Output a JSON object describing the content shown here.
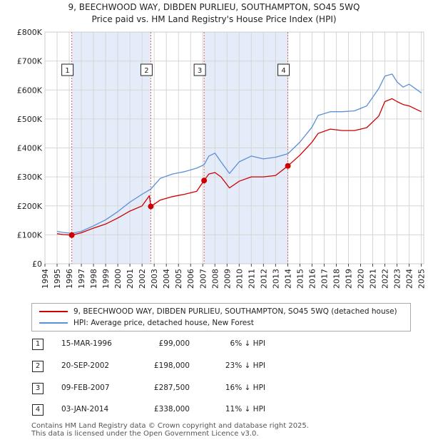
{
  "title_line1": "9, BEECHWOOD WAY, DIBDEN PURLIEU, SOUTHAMPTON, SO45 5WQ",
  "title_line2": "Price paid vs. HM Land Registry's House Price Index (HPI)",
  "chart_data": {
    "type": "line",
    "title": "9, BEECHWOOD WAY, DIBDEN PURLIEU, SOUTHAMPTON, SO45 5WQ — Price paid vs. HM Land Registry's House Price Index (HPI)",
    "xlabel": "",
    "ylabel": "",
    "xlim": [
      1994,
      2025.2
    ],
    "ylim": [
      0,
      800000
    ],
    "y_ticks": [
      0,
      100000,
      200000,
      300000,
      400000,
      500000,
      600000,
      700000,
      800000
    ],
    "y_tick_labels": [
      "£0",
      "£100K",
      "£200K",
      "£300K",
      "£400K",
      "£500K",
      "£600K",
      "£700K",
      "£800K"
    ],
    "x_ticks": [
      1994,
      1995,
      1996,
      1997,
      1998,
      1999,
      2000,
      2001,
      2002,
      2003,
      2004,
      2005,
      2006,
      2007,
      2008,
      2009,
      2010,
      2011,
      2012,
      2013,
      2014,
      2015,
      2016,
      2017,
      2018,
      2019,
      2020,
      2021,
      2022,
      2023,
      2024,
      2025
    ],
    "x_tick_labels": [
      "1994",
      "1995",
      "1996",
      "1997",
      "1998",
      "1999",
      "2000",
      "2001",
      "2002",
      "2003",
      "2004",
      "2005",
      "2006",
      "2007",
      "2008",
      "2009",
      "2010",
      "2011",
      "2012",
      "2013",
      "2014",
      "2015",
      "2016",
      "2017",
      "2018",
      "2019",
      "2020",
      "2021",
      "2022",
      "2023",
      "2024",
      "2025"
    ],
    "grid": true,
    "shaded_ranges": [
      [
        1996.21,
        2002.72
      ],
      [
        2007.11,
        2014.01
      ]
    ],
    "series": [
      {
        "name": "9, BEECHWOOD WAY, DIBDEN PURLIEU, SOUTHAMPTON, SO45 5WQ (detached house)",
        "color": "#cc0000",
        "x": [
          1995.0,
          1995.5,
          1996.21,
          1997.0,
          1998.0,
          1999.0,
          2000.0,
          2001.0,
          2002.0,
          2002.6,
          2002.72,
          2003.5,
          2004.5,
          2005.5,
          2006.5,
          2007.11,
          2007.5,
          2008.0,
          2008.5,
          2009.2,
          2010.0,
          2011.0,
          2012.0,
          2013.0,
          2014.01,
          2015.0,
          2016.0,
          2016.5,
          2017.5,
          2018.5,
          2019.5,
          2020.5,
          2021.5,
          2022.0,
          2022.6,
          2023.0,
          2023.5,
          2024.0,
          2024.5,
          2025.0
        ],
        "values": [
          104000,
          101000,
          99000,
          107000,
          123000,
          137000,
          158000,
          182000,
          200000,
          235000,
          198000,
          220000,
          232000,
          240000,
          250000,
          287500,
          310000,
          315000,
          300000,
          262000,
          285000,
          300000,
          300000,
          305000,
          338000,
          375000,
          420000,
          450000,
          465000,
          460000,
          460000,
          470000,
          510000,
          560000,
          570000,
          560000,
          550000,
          545000,
          535000,
          525000
        ]
      },
      {
        "name": "HPI: Average price, detached house, New Forest",
        "color": "#5b8fd6",
        "x": [
          1995.0,
          1995.5,
          1996.21,
          1997.0,
          1998.0,
          1999.0,
          2000.0,
          2001.0,
          2002.0,
          2002.72,
          2003.5,
          2004.5,
          2005.5,
          2006.5,
          2007.11,
          2007.5,
          2008.0,
          2008.5,
          2009.2,
          2010.0,
          2011.0,
          2012.0,
          2013.0,
          2014.01,
          2015.0,
          2016.0,
          2016.5,
          2017.5,
          2018.5,
          2019.5,
          2020.5,
          2021.5,
          2022.0,
          2022.6,
          2023.0,
          2023.5,
          2024.0,
          2024.5,
          2025.0
        ],
        "values": [
          112000,
          108000,
          105000,
          112000,
          131000,
          152000,
          180000,
          213000,
          240000,
          258000,
          295000,
          310000,
          318000,
          330000,
          342000,
          372000,
          382000,
          352000,
          312000,
          352000,
          372000,
          362000,
          368000,
          380000,
          420000,
          472000,
          512000,
          525000,
          525000,
          528000,
          545000,
          605000,
          648000,
          655000,
          628000,
          610000,
          620000,
          605000,
          590000
        ]
      }
    ],
    "markers": [
      {
        "label": "1",
        "x": 1996.21,
        "value": 99000
      },
      {
        "label": "2",
        "x": 2002.72,
        "value": 198000
      },
      {
        "label": "3",
        "x": 2007.11,
        "value": 287500
      },
      {
        "label": "4",
        "x": 2014.01,
        "value": 338000
      }
    ],
    "legend_position": "below"
  },
  "legend": {
    "property": "9, BEECHWOOD WAY, DIBDEN PURLIEU, SOUTHAMPTON, SO45 5WQ (detached house)",
    "hpi": "HPI: Average price, detached house, New Forest",
    "property_color": "#cc0000",
    "hpi_color": "#5b8fd6"
  },
  "sales": [
    {
      "num": "1",
      "date": "15-MAR-1996",
      "price": "£99,000",
      "hpi": "6% ↓ HPI"
    },
    {
      "num": "2",
      "date": "20-SEP-2002",
      "price": "£198,000",
      "hpi": "23% ↓ HPI"
    },
    {
      "num": "3",
      "date": "09-FEB-2007",
      "price": "£287,500",
      "hpi": "16% ↓ HPI"
    },
    {
      "num": "4",
      "date": "03-JAN-2014",
      "price": "£338,000",
      "hpi": "11% ↓ HPI"
    }
  ],
  "footer_line1": "Contains HM Land Registry data © Crown copyright and database right 2025.",
  "footer_line2": "This data is licensed under the Open Government Licence v3.0."
}
